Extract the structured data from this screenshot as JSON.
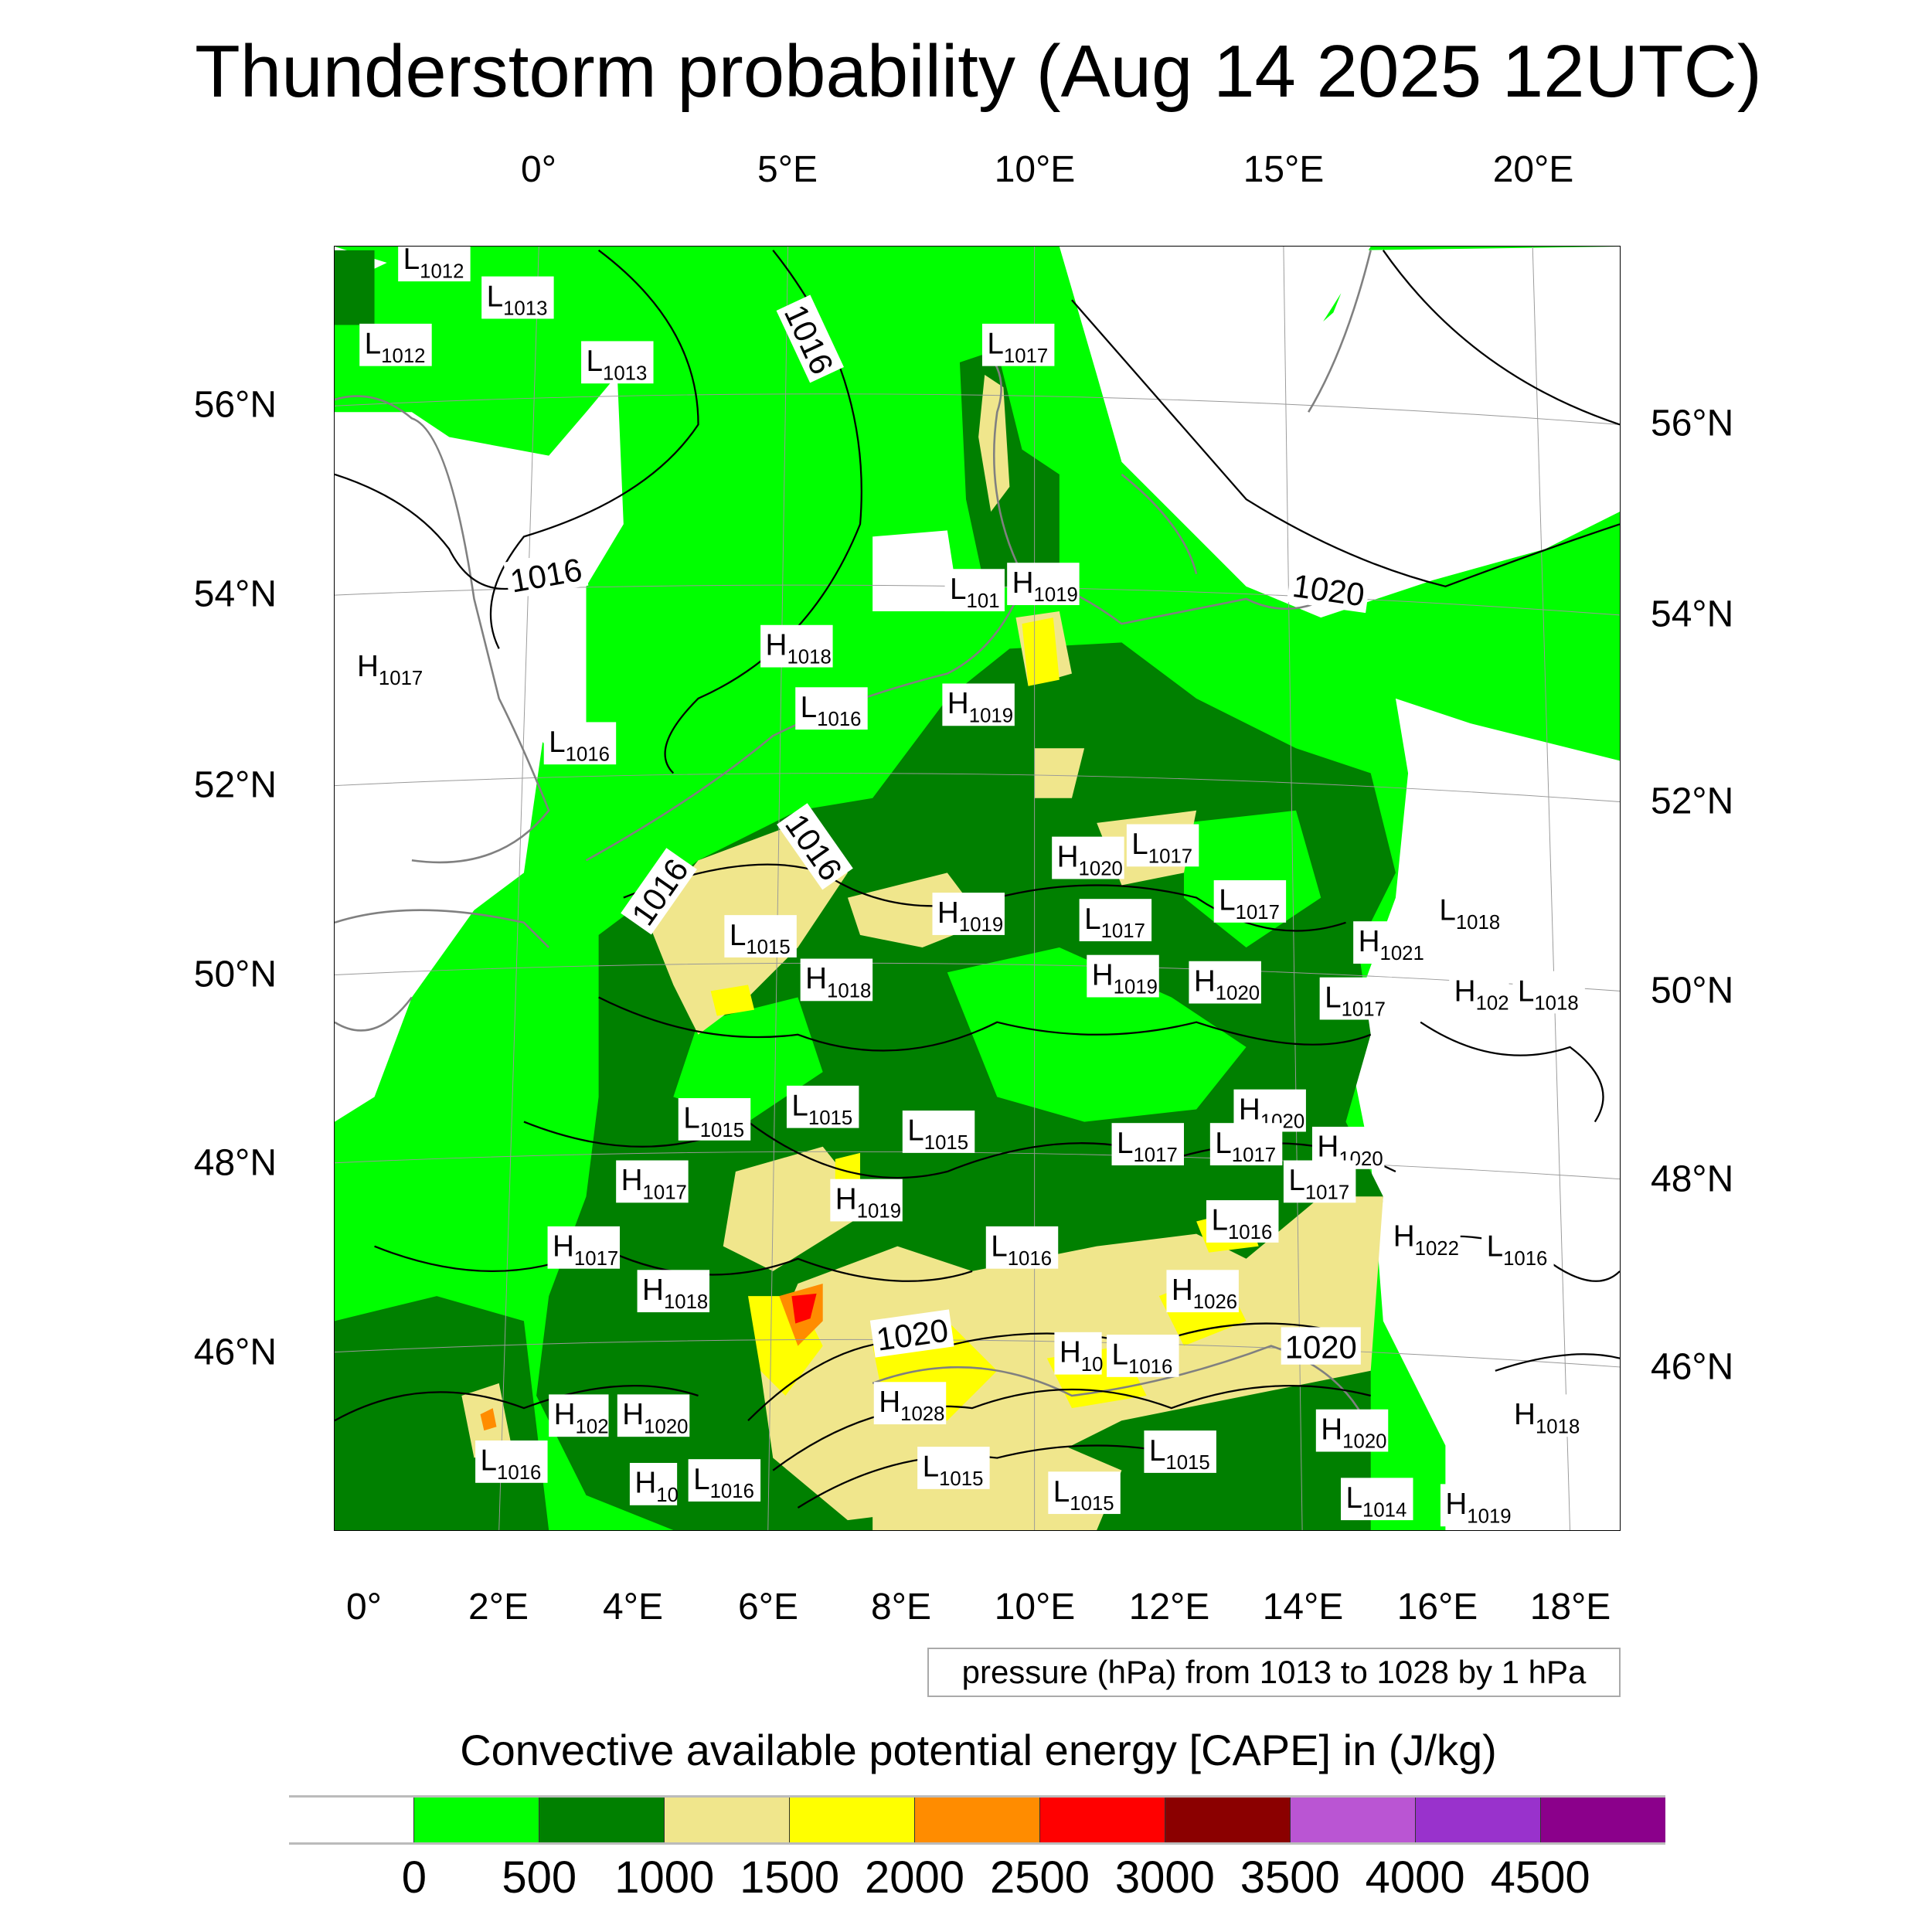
{
  "title": "Thunderstorm probability (Aug 14 2025 12UTC)",
  "axes": {
    "top_lon": [
      "0°",
      "5°E",
      "10°E",
      "15°E",
      "20°E"
    ],
    "bottom_lon": [
      "0°",
      "2°E",
      "4°E",
      "6°E",
      "8°E",
      "10°E",
      "12°E",
      "14°E",
      "16°E",
      "18°E"
    ],
    "left_lat": [
      "56°N",
      "54°N",
      "52°N",
      "50°N",
      "48°N",
      "46°N"
    ],
    "right_lat": [
      "56°N",
      "54°N",
      "52°N",
      "50°N",
      "48°N",
      "46°N"
    ]
  },
  "pressure_legend": "pressure (hPa) from 1013 to 1028 by 1 hPa",
  "colorbar": {
    "title": "Convective available potential energy [CAPE] in (J/kg)",
    "colors": [
      "#ffffff",
      "#00ff00",
      "#008000",
      "#f0e68c",
      "#ffff00",
      "#ff8c00",
      "#ff0000",
      "#8b0000",
      "#ba55d3",
      "#9932cc",
      "#8b008b"
    ],
    "labels": [
      "0",
      "500",
      "1000",
      "1500",
      "2000",
      "2500",
      "3000",
      "3500",
      "4000",
      "4500"
    ]
  },
  "pressure_centers": [
    {
      "t": "L",
      "v": "1012"
    },
    {
      "t": "L",
      "v": "1013"
    },
    {
      "t": "L",
      "v": "1012"
    },
    {
      "t": "L",
      "v": "1013"
    },
    {
      "t": "L",
      "v": "1017"
    },
    {
      "t": "L",
      "v": "101"
    },
    {
      "t": "H",
      "v": "1019"
    },
    {
      "t": "H",
      "v": "1018"
    },
    {
      "t": "H",
      "v": "1017"
    },
    {
      "t": "L",
      "v": "1016"
    },
    {
      "t": "H",
      "v": "1019"
    },
    {
      "t": "L",
      "v": "1016"
    },
    {
      "t": "H",
      "v": "1020"
    },
    {
      "t": "L",
      "v": "1017"
    },
    {
      "t": "H",
      "v": "1019"
    },
    {
      "t": "L",
      "v": "1017"
    },
    {
      "t": "L",
      "v": "1017"
    },
    {
      "t": "L",
      "v": "1018"
    },
    {
      "t": "H",
      "v": "1021"
    },
    {
      "t": "L",
      "v": "1015"
    },
    {
      "t": "H",
      "v": "1018"
    },
    {
      "t": "H",
      "v": "1019"
    },
    {
      "t": "H",
      "v": "1020"
    },
    {
      "t": "L",
      "v": "1017"
    },
    {
      "t": "H",
      "v": "102"
    },
    {
      "t": "L",
      "v": "1018"
    },
    {
      "t": "L",
      "v": "1015"
    },
    {
      "t": "L",
      "v": "1015"
    },
    {
      "t": "L",
      "v": "1015"
    },
    {
      "t": "H",
      "v": "1020"
    },
    {
      "t": "L",
      "v": "1017"
    },
    {
      "t": "L",
      "v": "1017"
    },
    {
      "t": "H",
      "v": "1020"
    },
    {
      "t": "L",
      "v": "1017"
    },
    {
      "t": "H",
      "v": "1017"
    },
    {
      "t": "H",
      "v": "1019"
    },
    {
      "t": "L",
      "v": "1016"
    },
    {
      "t": "L",
      "v": "1016"
    },
    {
      "t": "H",
      "v": "1022"
    },
    {
      "t": "L",
      "v": "1016"
    },
    {
      "t": "H",
      "v": "1017"
    },
    {
      "t": "H",
      "v": "1018"
    },
    {
      "t": "H",
      "v": "1026"
    },
    {
      "t": "H",
      "v": "10"
    },
    {
      "t": "L",
      "v": "1016"
    },
    {
      "t": "H",
      "v": "1028"
    },
    {
      "t": "H",
      "v": "102"
    },
    {
      "t": "H",
      "v": "1020"
    },
    {
      "t": "H",
      "v": "1018"
    },
    {
      "t": "H",
      "v": "1020"
    },
    {
      "t": "L",
      "v": "1016"
    },
    {
      "t": "L",
      "v": "1015"
    },
    {
      "t": "L",
      "v": "1015"
    },
    {
      "t": "H",
      "v": "10"
    },
    {
      "t": "L",
      "v": "1016"
    },
    {
      "t": "L",
      "v": "1015"
    },
    {
      "t": "L",
      "v": "1014"
    },
    {
      "t": "H",
      "v": "1019"
    }
  ],
  "contour_labels": [
    "1016",
    "1016",
    "1020",
    "1016",
    "1016",
    "1020",
    "1020"
  ]
}
